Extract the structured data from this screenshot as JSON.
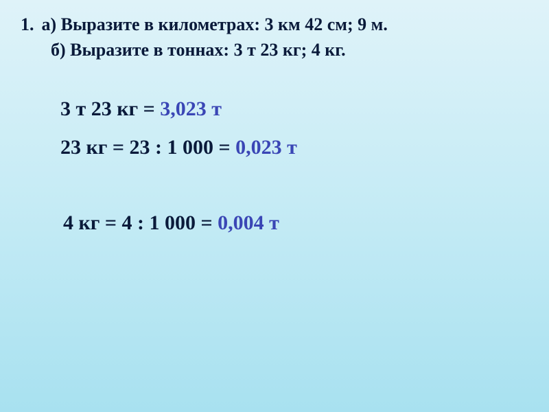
{
  "listNumber": "1.",
  "problem": {
    "lineA": "а)  Выразите в километрах:  3 км 42 см; 9 м.",
    "lineB": "б)  Выразите в тоннах:  3 т  23 кг;   4 кг."
  },
  "work1": {
    "line1_left": "3 т 23 кг =  ",
    "line1_answer": "3,023 т",
    "line2_left": "23 кг = 23 : 1 000 = ",
    "line2_answer": "0,023 т"
  },
  "work2": {
    "line1_left": "4 кг = 4 : 1 000 = ",
    "line1_answer": "0,004 т"
  },
  "colors": {
    "text": "#0a1a3a",
    "answer": "#3a46b5",
    "bg_top": "#dff3f9",
    "bg_mid": "#c5ebf5",
    "bg_bottom": "#a8e1f0"
  },
  "fontSizes": {
    "problem": 26,
    "work": 30
  }
}
